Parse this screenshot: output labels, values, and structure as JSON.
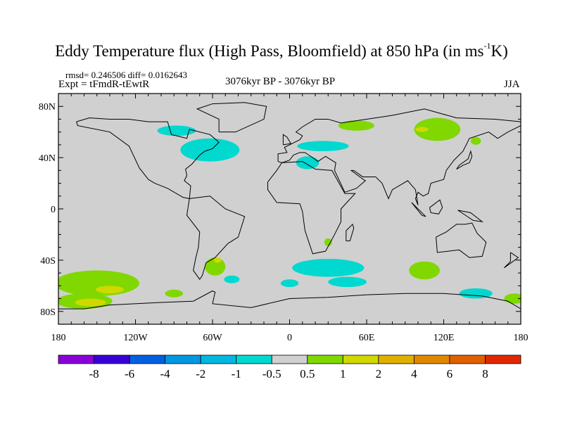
{
  "chart_data": {
    "type": "heatmap",
    "title_main": "Eddy Temperature flux (High Pass, Bloomfield) at 850 hPa (in ms",
    "title_sup": "-1",
    "title_end": "K)",
    "stats": "rmsd= 0.246506 diff= 0.0162643",
    "experiment": "Expt = tFmdR-tEwtR",
    "period": "3076kyr BP - 3076kyr BP",
    "season": "JJA",
    "xlim": [
      -180,
      180
    ],
    "ylim": [
      -90,
      90
    ],
    "x_ticks": [
      {
        "value": -180,
        "label": "180"
      },
      {
        "value": -120,
        "label": "120W"
      },
      {
        "value": -60,
        "label": "60W"
      },
      {
        "value": 0,
        "label": "0"
      },
      {
        "value": 60,
        "label": "60E"
      },
      {
        "value": 120,
        "label": "120E"
      },
      {
        "value": 180,
        "label": "180"
      }
    ],
    "y_ticks": [
      {
        "value": 80,
        "label": "80N"
      },
      {
        "value": 40,
        "label": "40N"
      },
      {
        "value": 0,
        "label": "0"
      },
      {
        "value": -40,
        "label": "40S"
      },
      {
        "value": -80,
        "label": "80S"
      }
    ],
    "colorbar": {
      "levels": [
        "-8",
        "-6",
        "-4",
        "-2",
        "-1",
        "-0.5",
        "0.5",
        "1",
        "2",
        "4",
        "6",
        "8"
      ],
      "colors": [
        "#8a00d8",
        "#3a00d8",
        "#0060e0",
        "#0098e0",
        "#00b8e0",
        "#00d8d0",
        "#d0d0d0",
        "#80d800",
        "#d0d800",
        "#e0b000",
        "#e08800",
        "#e06000",
        "#e02800"
      ]
    },
    "background_color": "#d0d0d0",
    "anomalies": [
      {
        "lon": -62,
        "lat": 46,
        "rlon": 23,
        "rlat": 9,
        "bin": 5
      },
      {
        "lon": -88,
        "lat": 61,
        "rlon": 15,
        "rlat": 4,
        "bin": 5
      },
      {
        "lon": 26,
        "lat": 49,
        "rlon": 20,
        "rlat": 4,
        "bin": 5
      },
      {
        "lon": 14,
        "lat": 36,
        "rlon": 9,
        "rlat": 5,
        "bin": 5
      },
      {
        "lon": 30,
        "lat": -46,
        "rlon": 28,
        "rlat": 7,
        "bin": 5
      },
      {
        "lon": 45,
        "lat": -57,
        "rlon": 15,
        "rlat": 4,
        "bin": 5
      },
      {
        "lon": 0,
        "lat": -58,
        "rlon": 7,
        "rlat": 3,
        "bin": 5
      },
      {
        "lon": 145,
        "lat": -66,
        "rlon": 13,
        "rlat": 4,
        "bin": 5
      },
      {
        "lon": -45,
        "lat": -55,
        "rlon": 6,
        "rlat": 3,
        "bin": 5
      },
      {
        "lon": 115,
        "lat": 62,
        "rlon": 18,
        "rlat": 9,
        "bin": 7
      },
      {
        "lon": 52,
        "lat": 65,
        "rlon": 14,
        "rlat": 4,
        "bin": 7
      },
      {
        "lon": -150,
        "lat": -58,
        "rlon": 33,
        "rlat": 10,
        "bin": 7
      },
      {
        "lon": -160,
        "lat": -72,
        "rlon": 22,
        "rlat": 6,
        "bin": 7
      },
      {
        "lon": -90,
        "lat": -66,
        "rlon": 7,
        "rlat": 3,
        "bin": 7
      },
      {
        "lon": 105,
        "lat": -48,
        "rlon": 12,
        "rlat": 7,
        "bin": 7
      },
      {
        "lon": -58,
        "lat": -45,
        "rlon": 8,
        "rlat": 7,
        "bin": 7
      },
      {
        "lon": 175,
        "lat": -70,
        "rlon": 8,
        "rlat": 4,
        "bin": 7
      },
      {
        "lon": 30,
        "lat": -26,
        "rlon": 3,
        "rlat": 3,
        "bin": 7
      },
      {
        "lon": 145,
        "lat": 53,
        "rlon": 4,
        "rlat": 3,
        "bin": 7
      },
      {
        "lon": -155,
        "lat": -73,
        "rlon": 12,
        "rlat": 3,
        "bin": 8
      },
      {
        "lon": -140,
        "lat": -63,
        "rlon": 11,
        "rlat": 3,
        "bin": 8
      },
      {
        "lon": 103,
        "lat": 62,
        "rlon": 5,
        "rlat": 2,
        "bin": 8
      },
      {
        "lon": -56,
        "lat": -40,
        "rlon": 3,
        "rlat": 2,
        "bin": 8
      }
    ]
  }
}
